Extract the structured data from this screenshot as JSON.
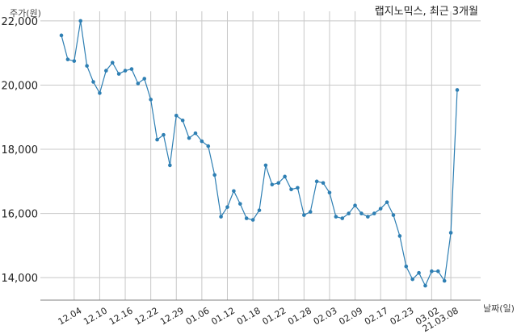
{
  "chart_data": {
    "type": "line",
    "title": "랩지노믹스, 최근 3개월",
    "ylabel": "주가(원)",
    "xlabel": "날짜(일)",
    "ylim": [
      13300,
      22300
    ],
    "yticks": [
      14000,
      16000,
      18000,
      20000,
      22000
    ],
    "ytick_labels": [
      "14,000",
      "16,000",
      "18,000",
      "20,000",
      "22,000"
    ],
    "grid": true,
    "line_color": "#2e7fb3",
    "xtick_labels": [
      "12.04",
      "12.10",
      "12.16",
      "12.22",
      "12.29",
      "01.06",
      "01.12",
      "01.18",
      "01.22",
      "01.28",
      "02.03",
      "02.09",
      "02.17",
      "02.23",
      "03.02",
      "21.03.08"
    ],
    "xtick_index": [
      2,
      6,
      10,
      14,
      18,
      22,
      26,
      30,
      34,
      38,
      42,
      46,
      50,
      54,
      58,
      61
    ],
    "series": [
      {
        "values": [
          21550,
          20800,
          20750,
          22000,
          20600,
          20100,
          19750,
          20450,
          20700,
          20350,
          20450,
          20500,
          20050,
          20200,
          19550,
          18300,
          18450,
          17500,
          19050,
          18900,
          18350,
          18500,
          18250,
          18100,
          17200,
          15900,
          16200,
          16700,
          16300,
          15850,
          15800,
          16100,
          17500,
          16900,
          16950,
          17150,
          16750,
          16800,
          15950,
          16050,
          17000,
          16950,
          16650,
          15900,
          15850,
          16000,
          16250,
          16000,
          15900,
          16000,
          16150,
          16350,
          15950,
          15300,
          14350,
          13950,
          14150,
          13750,
          14200,
          14200,
          13900,
          15400,
          19850
        ]
      }
    ]
  }
}
